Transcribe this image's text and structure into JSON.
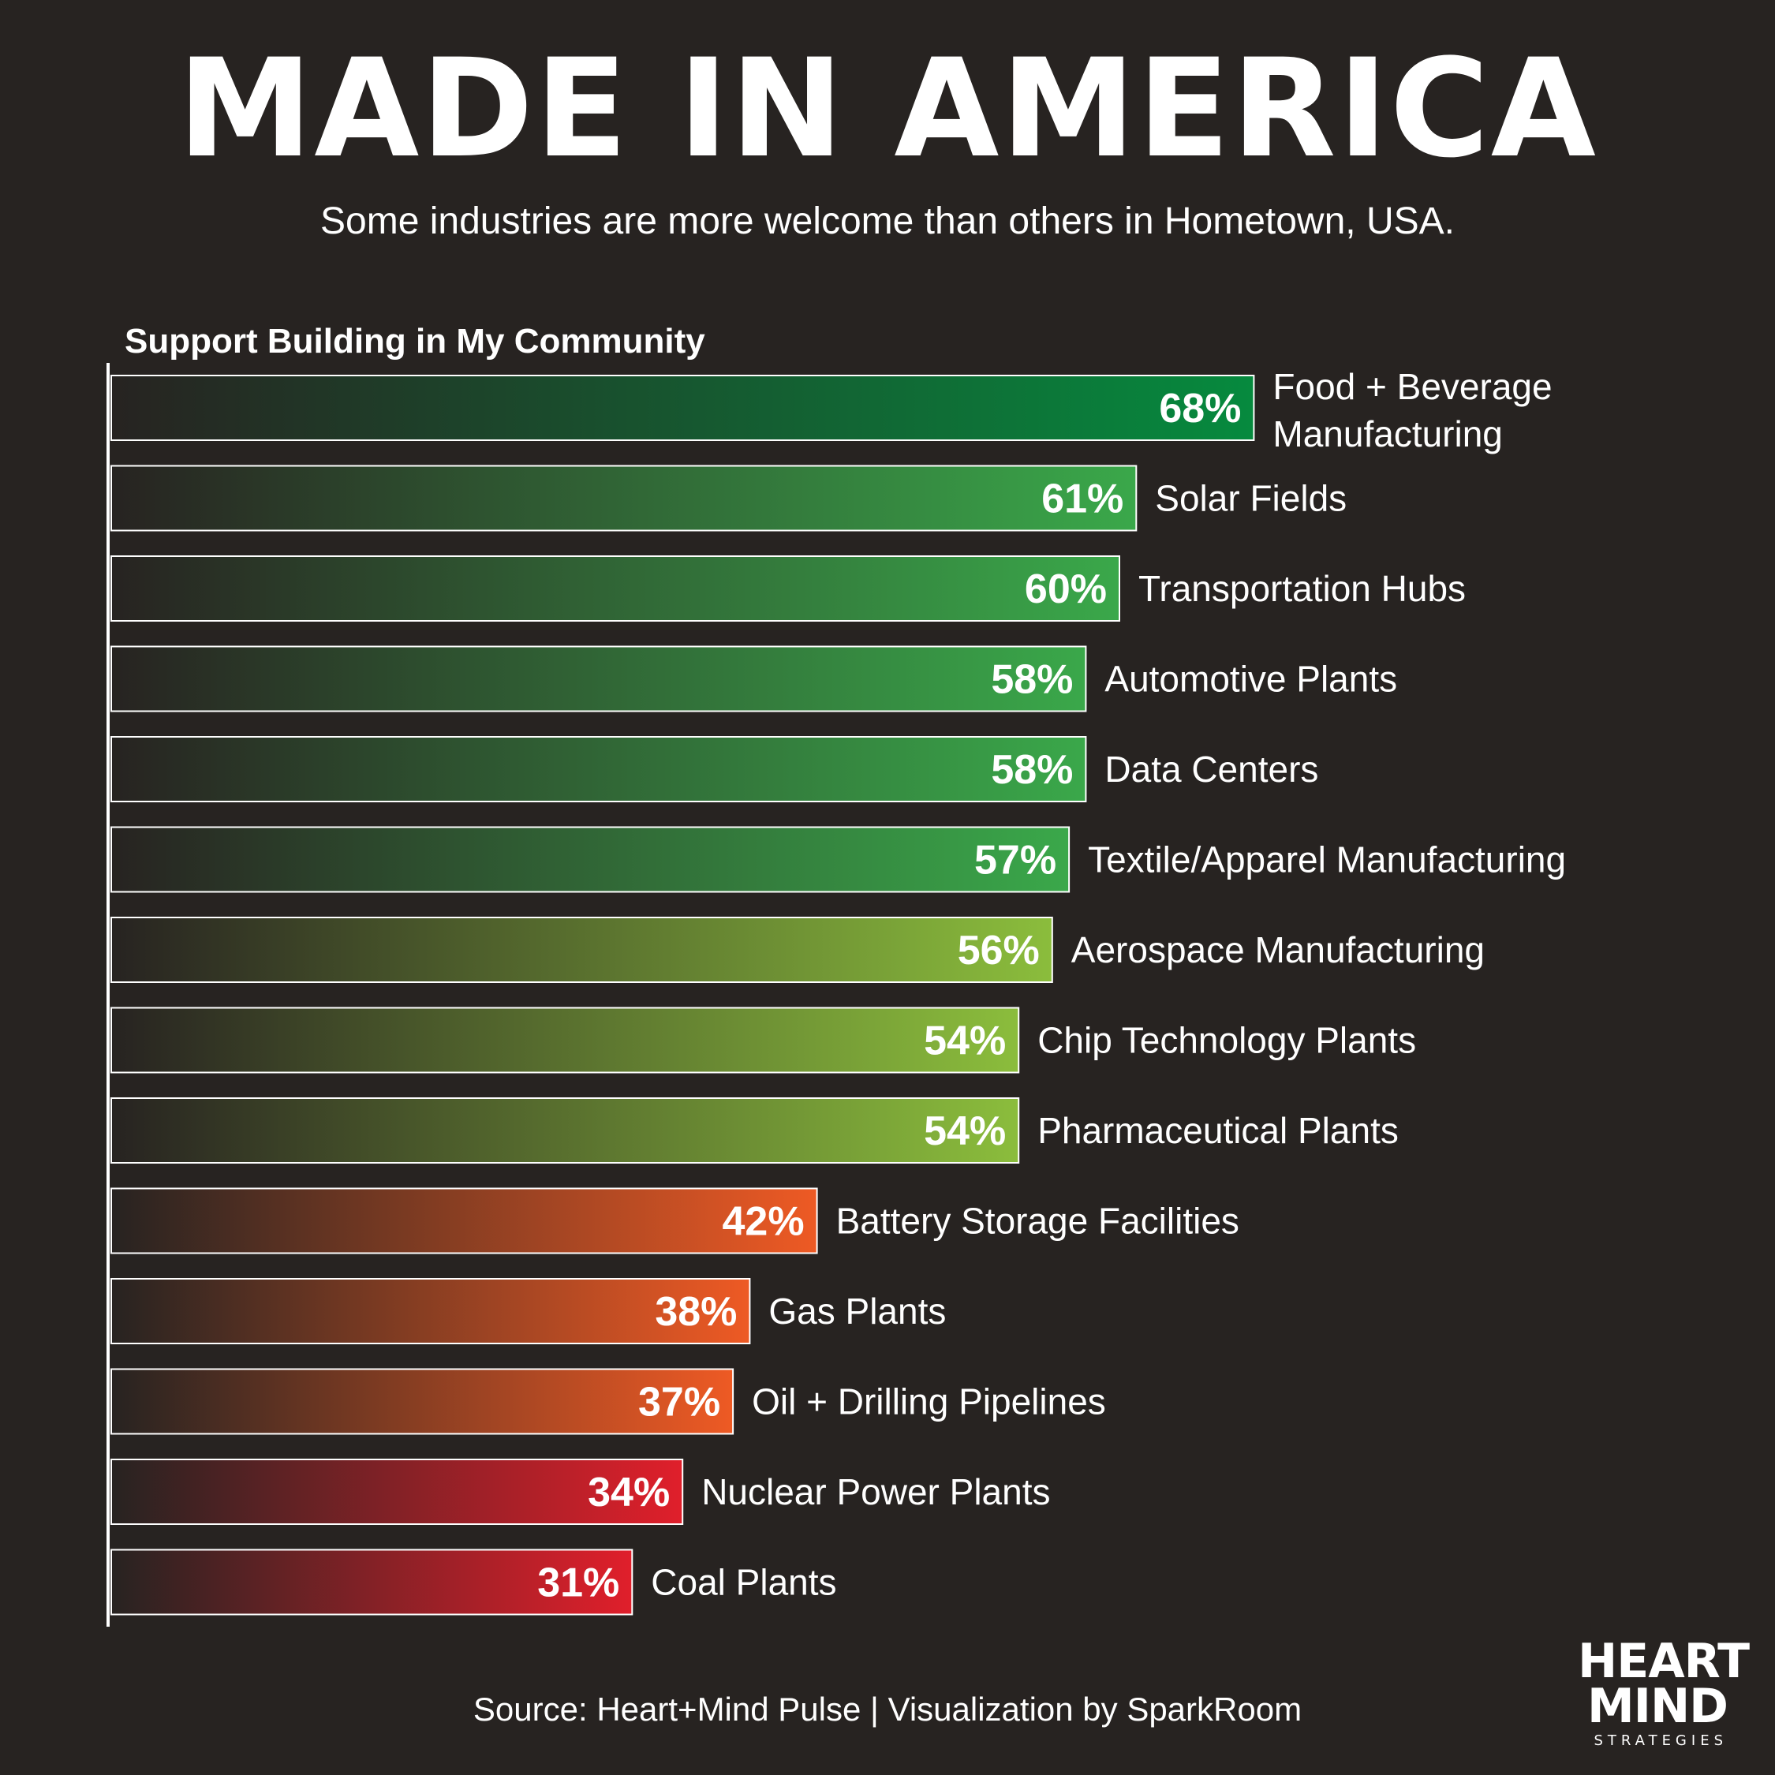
{
  "header": {
    "title": "MADE IN AMERICA",
    "subtitle": "Some industries are more welcome than others in Hometown, USA."
  },
  "footer": {
    "source": "Source: Heart+Mind Pulse  |  Visualization by SparkRoom"
  },
  "logo": {
    "line1": "HEART",
    "line2": "MIND",
    "line3": "STRATEGIES"
  },
  "colors": {
    "background": "#272321",
    "green_dark": "#0a8a3f",
    "green": "#3aa84a",
    "lime": "#8bbd3c",
    "orange": "#ee5a24",
    "red": "#e01f2b"
  },
  "chart_data": {
    "type": "bar",
    "orientation": "horizontal",
    "title": "Support Building in My Community",
    "unit": "%",
    "categories": [
      "Food + Beverage Manufacturing",
      "Solar Fields",
      "Transportation Hubs",
      "Automotive Plants",
      "Data Centers",
      "Textile/Apparel Manufacturing",
      "Aerospace Manufacturing",
      "Chip Technology Plants",
      "Pharmaceutical Plants",
      "Battery Storage Facilities",
      "Gas Plants",
      "Oil + Drilling Pipelines",
      "Nuclear Power Plants",
      "Coal Plants"
    ],
    "values": [
      68,
      61,
      60,
      58,
      58,
      57,
      56,
      54,
      54,
      42,
      38,
      37,
      34,
      31
    ],
    "bar_colors": [
      "#068a3e",
      "#3aa84a",
      "#3aa84a",
      "#3aa84a",
      "#3aa84a",
      "#3aa84a",
      "#8bbd3c",
      "#8bbd3c",
      "#8bbd3c",
      "#ee5a24",
      "#ee5a24",
      "#ee5a24",
      "#e01f2b",
      "#e01f2b"
    ]
  }
}
